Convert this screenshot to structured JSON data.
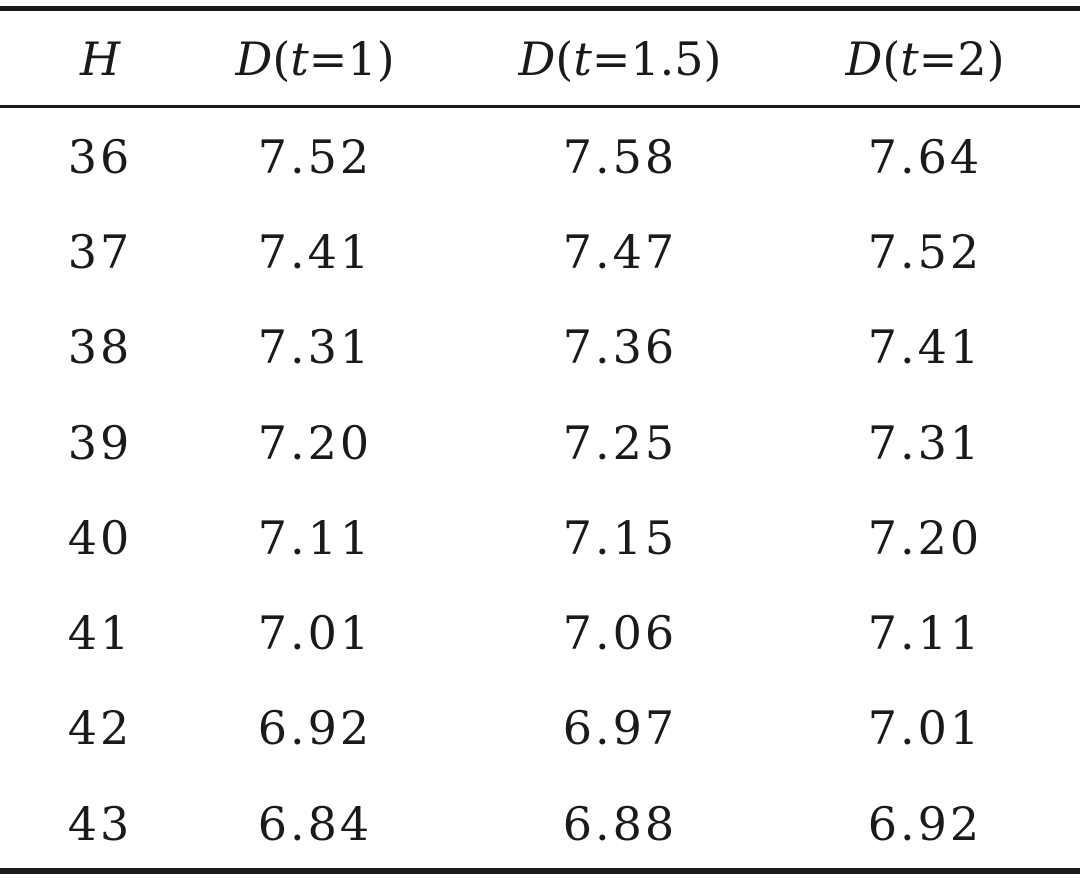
{
  "table": {
    "headers": [
      {
        "var": "H",
        "open": "",
        "arg": "",
        "close": ""
      },
      {
        "var": "D",
        "open": "(",
        "arg": "t",
        "eq": "=",
        "val": "1",
        "close": ")"
      },
      {
        "var": "D",
        "open": "(",
        "arg": "t",
        "eq": "=",
        "val": "1.5",
        "close": ")"
      },
      {
        "var": "D",
        "open": "(",
        "arg": "t",
        "eq": "=",
        "val": "2",
        "close": ")"
      }
    ],
    "rows": [
      [
        "36",
        "7.52",
        "7.58",
        "7.64"
      ],
      [
        "37",
        "7.41",
        "7.47",
        "7.52"
      ],
      [
        "38",
        "7.31",
        "7.36",
        "7.41"
      ],
      [
        "39",
        "7.20",
        "7.25",
        "7.31"
      ],
      [
        "40",
        "7.11",
        "7.15",
        "7.20"
      ],
      [
        "41",
        "7.01",
        "7.06",
        "7.11"
      ],
      [
        "42",
        "6.92",
        "6.97",
        "7.01"
      ],
      [
        "43",
        "6.84",
        "6.88",
        "6.92"
      ]
    ]
  }
}
